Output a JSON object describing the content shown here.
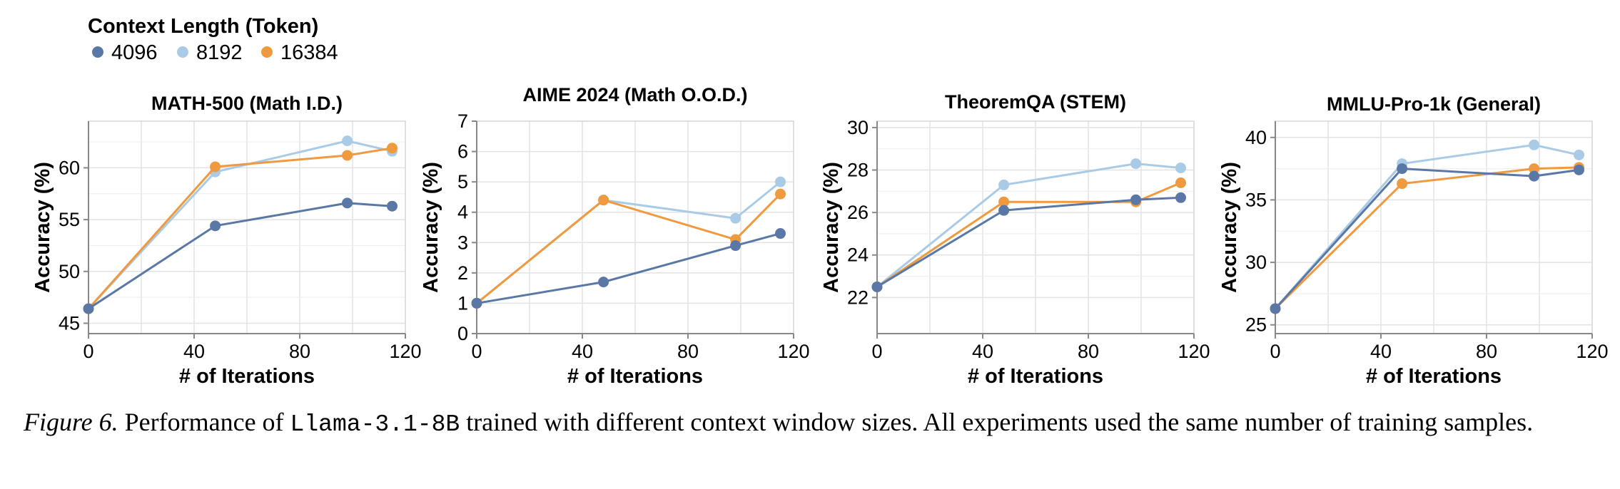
{
  "legend": {
    "title": "Context Length (Token)",
    "items": [
      {
        "label": "4096",
        "color": "#5a78a6"
      },
      {
        "label": "8192",
        "color": "#a9cbe6"
      },
      {
        "label": "16384",
        "color": "#ef9a3f"
      }
    ]
  },
  "caption": {
    "label": "Figure 6.",
    "text_before": " Performance of ",
    "model": "Llama-3.1-8B",
    "text_after": " trained with different context window sizes.  All experiments used the same number of training samples."
  },
  "chart_data": [
    {
      "type": "line",
      "title": "MATH-500 (Math I.D.)",
      "xlabel": "# of Iterations",
      "ylabel": "Accuracy (%)",
      "x": [
        0,
        48,
        98,
        115
      ],
      "xlim": [
        0,
        120
      ],
      "ylim": [
        44,
        64.5
      ],
      "xticks": [
        0,
        40,
        80,
        120
      ],
      "yticks": [
        45,
        50,
        55,
        60
      ],
      "grid": true,
      "series": [
        {
          "name": "4096",
          "values": [
            46.4,
            54.4,
            56.6,
            56.3
          ]
        },
        {
          "name": "8192",
          "values": [
            46.4,
            59.6,
            62.6,
            61.6
          ]
        },
        {
          "name": "16384",
          "values": [
            46.4,
            60.1,
            61.2,
            61.9
          ]
        }
      ]
    },
    {
      "type": "line",
      "title": "AIME 2024 (Math O.O.D.)",
      "xlabel": "# of Iterations",
      "ylabel": "Accuracy (%)",
      "x": [
        0,
        48,
        98,
        115
      ],
      "xlim": [
        0,
        120
      ],
      "ylim": [
        0,
        7
      ],
      "xticks": [
        0,
        40,
        80,
        120
      ],
      "yticks": [
        0,
        1,
        2,
        3,
        4,
        5,
        6,
        7
      ],
      "grid": true,
      "series": [
        {
          "name": "4096",
          "values": [
            1.0,
            1.7,
            2.9,
            3.3
          ]
        },
        {
          "name": "8192",
          "values": [
            1.0,
            4.4,
            3.8,
            5.0
          ]
        },
        {
          "name": "16384",
          "values": [
            1.0,
            4.4,
            3.1,
            4.6
          ]
        }
      ]
    },
    {
      "type": "line",
      "title": "TheoremQA (STEM)",
      "xlabel": "# of Iterations",
      "ylabel": "Accuracy (%)",
      "x": [
        0,
        48,
        98,
        115
      ],
      "xlim": [
        0,
        120
      ],
      "ylim": [
        20.3,
        30.3
      ],
      "xticks": [
        0,
        40,
        80,
        120
      ],
      "yticks": [
        22,
        24,
        26,
        28,
        30
      ],
      "grid": true,
      "series": [
        {
          "name": "4096",
          "values": [
            22.5,
            26.1,
            26.6,
            26.7
          ]
        },
        {
          "name": "8192",
          "values": [
            22.5,
            27.3,
            28.3,
            28.1
          ]
        },
        {
          "name": "16384",
          "values": [
            22.5,
            26.5,
            26.5,
            27.4
          ]
        }
      ]
    },
    {
      "type": "line",
      "title": "MMLU-Pro-1k (General)",
      "xlabel": "# of Iterations",
      "ylabel": "Accuracy (%)",
      "x": [
        0,
        48,
        98,
        115
      ],
      "xlim": [
        0,
        120
      ],
      "ylim": [
        24.3,
        41.3
      ],
      "xticks": [
        0,
        40,
        80,
        120
      ],
      "yticks": [
        25,
        30,
        35,
        40
      ],
      "grid": true,
      "series": [
        {
          "name": "4096",
          "values": [
            26.3,
            37.5,
            36.9,
            37.4
          ]
        },
        {
          "name": "8192",
          "values": [
            26.3,
            37.9,
            39.4,
            38.6
          ]
        },
        {
          "name": "16384",
          "values": [
            26.3,
            36.3,
            37.5,
            37.6
          ]
        }
      ]
    }
  ]
}
